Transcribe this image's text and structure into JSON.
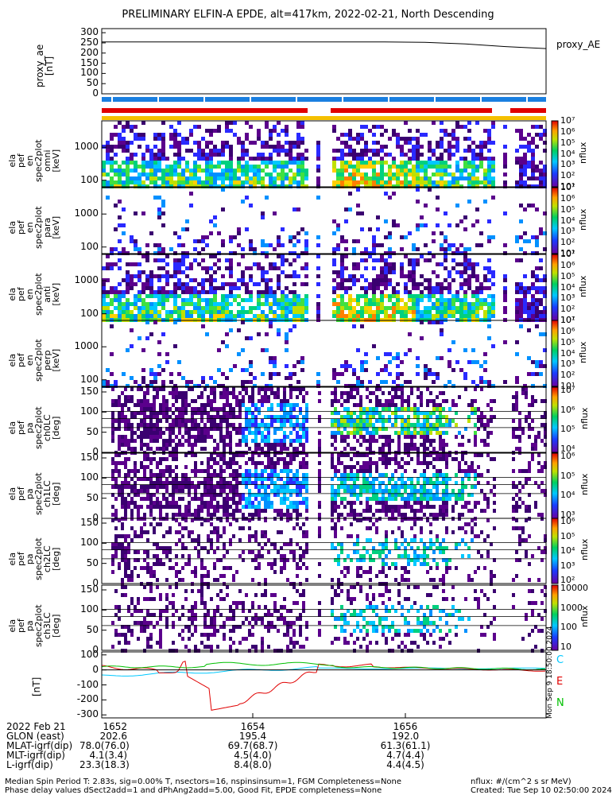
{
  "title": "PRELIMINARY ELFIN-A EPDE, alt=417km, 2022-02-21, North Descending",
  "proxy_ae": {
    "ylabel": "proxy_ae\n[nT]",
    "legend": "proxy_AE",
    "yticks": [
      "300",
      "250",
      "200",
      "150",
      "100",
      "50",
      "0"
    ],
    "values": [
      255,
      255,
      255,
      255,
      255,
      255,
      255,
      255,
      253,
      245,
      232,
      222
    ]
  },
  "spectra_panels": [
    {
      "ylabel": "ela\npef\nen\nspec2plot\nomni\n[keV]",
      "yticks": [
        "1000",
        "100"
      ],
      "cbar_label": "nflux",
      "cbar_ticks": [
        "10⁷",
        "10⁶",
        "10⁵",
        "10⁴",
        "10³",
        "10²",
        "10¹"
      ],
      "density": 0.9
    },
    {
      "ylabel": "ela\npef\nen\nspec2plot\npara\n[keV]",
      "yticks": [
        "1000",
        "100"
      ],
      "cbar_label": "nflux",
      "cbar_ticks": [
        "10⁷",
        "10⁶",
        "10⁵",
        "10⁴",
        "10³",
        "10²",
        "10¹"
      ],
      "density": 0.25
    },
    {
      "ylabel": "ela\npef\nen\nspec2plot\nanti\n[keV]",
      "yticks": [
        "1000",
        "100"
      ],
      "cbar_label": "nflux",
      "cbar_ticks": [
        "10⁷",
        "10⁶",
        "10⁵",
        "10⁴",
        "10³",
        "10²",
        "10¹"
      ],
      "density": 0.9
    },
    {
      "ylabel": "ela\npef\nen\nspec2plot\nperp\n[keV]",
      "yticks": [
        "1000",
        "100"
      ],
      "cbar_label": "nflux",
      "cbar_ticks": [
        "10⁷",
        "10⁶",
        "10⁵",
        "10⁴",
        "10³",
        "10²",
        "10¹"
      ],
      "density": 0.3
    }
  ],
  "pitch_panels": [
    {
      "ylabel": "ela\npef\npa\nspec2plot\nch0LC\n[deg]",
      "yticks": [
        "150",
        "100",
        "50",
        "0"
      ],
      "cbar_label": "nflux",
      "cbar_ticks": [
        "10⁷",
        "10⁶",
        "10⁵",
        "10⁴"
      ]
    },
    {
      "ylabel": "ela\npef\npa\nspec2plot\nch1LC\n[deg]",
      "yticks": [
        "150",
        "100",
        "50",
        "0"
      ],
      "cbar_label": "nflux",
      "cbar_ticks": [
        "10⁶",
        "10⁵",
        "10⁴",
        "10³"
      ]
    },
    {
      "ylabel": "ela\npef\npa\nspec2plot\nch2LC\n[deg]",
      "yticks": [
        "150",
        "100",
        "50",
        "0"
      ],
      "cbar_label": "nflux",
      "cbar_ticks": [
        "10⁶",
        "10⁵",
        "10⁴",
        "10³",
        "10²"
      ]
    },
    {
      "ylabel": "ela\npef\npa\nspec2plot\nch3LC\n[deg]",
      "yticks": [
        "150",
        "100",
        "50",
        "0"
      ],
      "cbar_label": "nflux",
      "cbar_ticks": [
        "10000",
        "1000",
        "100",
        "10"
      ]
    }
  ],
  "mag_panel": {
    "ylabel": "[nT]",
    "yticks": [
      "100",
      "0",
      "-100",
      "-200",
      "-300"
    ],
    "legend": [
      {
        "label": "C",
        "color": "#00c8ff"
      },
      {
        "label": "E",
        "color": "#e00000"
      },
      {
        "label": "N",
        "color": "#00c000"
      }
    ],
    "side_text": "Mon Sep 9 18:50:00 2024"
  },
  "footer": {
    "rows": [
      {
        "label": "2022 Feb 21",
        "values": [
          "1652",
          "1654",
          "1656"
        ]
      },
      {
        "label": "GLON (east)",
        "values": [
          "202.6",
          "195.4",
          "192.0"
        ]
      },
      {
        "label": "MLAT-igrf(dip)",
        "values": [
          "78.0(76.0)",
          "69.7(68.7)",
          "61.3(61.1)"
        ]
      },
      {
        "label": "MLT-igrf(dip)",
        "values": [
          "4.1(3.4)",
          "4.5(4.0)",
          "4.7(4.4)"
        ]
      },
      {
        "label": "L-igrf(dip)",
        "values": [
          "23.3(18.3)",
          "8.4(8.0)",
          "4.4(4.5)"
        ]
      }
    ],
    "note1": "Median Spin Period T: 2.83s, sig=0.00% T, nsectors=16, nspinsinsum=1, FGM Completeness=None",
    "note2": "Phase delay values dSect2add=1 and dPhAng2add=5.00, Good Fit, EPDE completeness=None",
    "units": "nflux: #/(cm^2 s sr MeV)",
    "created": "Created: Tue Sep 10 02:50:00 2024"
  },
  "colors": {
    "blue_bar": "#1a7fe0",
    "red_bar": "#e00000",
    "yellow_bar": "#f5c000"
  }
}
